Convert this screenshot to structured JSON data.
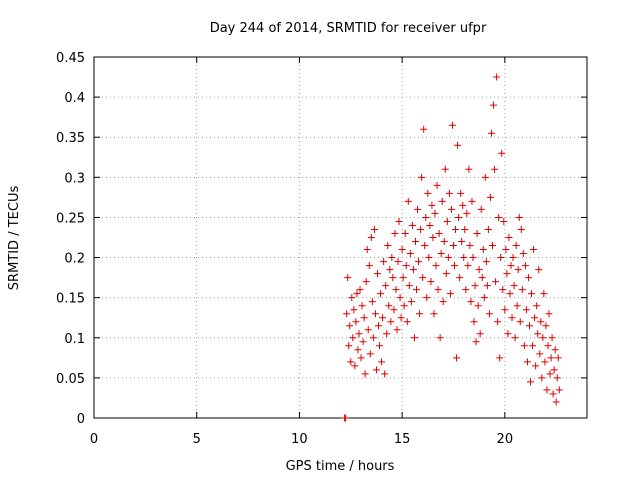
{
  "chart_data": {
    "type": "scatter",
    "title": "Day 244 of 2014, SRMTID for receiver ufpr",
    "xlabel": "GPS time / hours",
    "ylabel": "SRMTID / TECUs",
    "xlim": [
      0,
      24
    ],
    "ylim": [
      0,
      0.45
    ],
    "xticks": [
      0,
      5,
      10,
      15,
      20
    ],
    "xtick_labels": [
      "0",
      "5",
      "10",
      "15",
      "20"
    ],
    "yticks": [
      0,
      0.05,
      0.1,
      0.15,
      0.2,
      0.25,
      0.3,
      0.35,
      0.4,
      0.45
    ],
    "ytick_labels": [
      "0",
      "0.05",
      "0.1",
      "0.15",
      "0.2",
      "0.25",
      "0.3",
      "0.35",
      "0.4",
      "0.45"
    ],
    "grid": true,
    "marker": "+",
    "color": "#e00000",
    "series": [
      {
        "name": "SRMTID",
        "points": [
          [
            12.2,
            0.0
          ],
          [
            12.25,
            0.0
          ],
          [
            12.3,
            0.13
          ],
          [
            12.35,
            0.175
          ],
          [
            12.4,
            0.09
          ],
          [
            12.45,
            0.115
          ],
          [
            12.5,
            0.07
          ],
          [
            12.55,
            0.15
          ],
          [
            12.6,
            0.1
          ],
          [
            12.65,
            0.135
          ],
          [
            12.7,
            0.065
          ],
          [
            12.75,
            0.12
          ],
          [
            12.8,
            0.155
          ],
          [
            12.85,
            0.085
          ],
          [
            12.9,
            0.105
          ],
          [
            12.95,
            0.16
          ],
          [
            13.0,
            0.075
          ],
          [
            13.05,
            0.14
          ],
          [
            13.1,
            0.095
          ],
          [
            13.15,
            0.125
          ],
          [
            13.2,
            0.055
          ],
          [
            13.25,
            0.17
          ],
          [
            13.3,
            0.21
          ],
          [
            13.35,
            0.11
          ],
          [
            13.4,
            0.19
          ],
          [
            13.45,
            0.08
          ],
          [
            13.5,
            0.225
          ],
          [
            13.55,
            0.145
          ],
          [
            13.6,
            0.1
          ],
          [
            13.65,
            0.235
          ],
          [
            13.7,
            0.13
          ],
          [
            13.75,
            0.06
          ],
          [
            13.8,
            0.18
          ],
          [
            13.85,
            0.115
          ],
          [
            13.9,
            0.09
          ],
          [
            13.95,
            0.155
          ],
          [
            14.0,
            0.07
          ],
          [
            14.05,
            0.125
          ],
          [
            14.1,
            0.195
          ],
          [
            14.15,
            0.055
          ],
          [
            14.2,
            0.165
          ],
          [
            14.25,
            0.105
          ],
          [
            14.3,
            0.215
          ],
          [
            14.35,
            0.14
          ],
          [
            14.4,
            0.185
          ],
          [
            14.45,
            0.12
          ],
          [
            14.5,
            0.2
          ],
          [
            14.55,
            0.175
          ],
          [
            14.6,
            0.135
          ],
          [
            14.65,
            0.23
          ],
          [
            14.7,
            0.16
          ],
          [
            14.75,
            0.11
          ],
          [
            14.8,
            0.195
          ],
          [
            14.85,
            0.245
          ],
          [
            14.9,
            0.15
          ],
          [
            14.95,
            0.125
          ],
          [
            15.0,
            0.21
          ],
          [
            15.05,
            0.175
          ],
          [
            15.1,
            0.14
          ],
          [
            15.15,
            0.23
          ],
          [
            15.2,
            0.19
          ],
          [
            15.25,
            0.12
          ],
          [
            15.3,
            0.27
          ],
          [
            15.35,
            0.165
          ],
          [
            15.4,
            0.205
          ],
          [
            15.45,
            0.145
          ],
          [
            15.5,
            0.24
          ],
          [
            15.55,
            0.185
          ],
          [
            15.6,
            0.1
          ],
          [
            15.65,
            0.22
          ],
          [
            15.7,
            0.16
          ],
          [
            15.75,
            0.26
          ],
          [
            15.8,
            0.195
          ],
          [
            15.85,
            0.13
          ],
          [
            15.9,
            0.235
          ],
          [
            15.95,
            0.3
          ],
          [
            16.0,
            0.175
          ],
          [
            16.05,
            0.36
          ],
          [
            16.1,
            0.215
          ],
          [
            16.15,
            0.25
          ],
          [
            16.2,
            0.15
          ],
          [
            16.25,
            0.28
          ],
          [
            16.3,
            0.2
          ],
          [
            16.35,
            0.24
          ],
          [
            16.4,
            0.17
          ],
          [
            16.45,
            0.265
          ],
          [
            16.5,
            0.225
          ],
          [
            16.55,
            0.13
          ],
          [
            16.6,
            0.255
          ],
          [
            16.65,
            0.19
          ],
          [
            16.7,
            0.29
          ],
          [
            16.75,
            0.16
          ],
          [
            16.8,
            0.23
          ],
          [
            16.85,
            0.1
          ],
          [
            16.9,
            0.205
          ],
          [
            16.95,
            0.27
          ],
          [
            17.0,
            0.145
          ],
          [
            17.05,
            0.22
          ],
          [
            17.1,
            0.31
          ],
          [
            17.15,
            0.18
          ],
          [
            17.2,
            0.245
          ],
          [
            17.25,
            0.2
          ],
          [
            17.3,
            0.28
          ],
          [
            17.35,
            0.155
          ],
          [
            17.4,
            0.26
          ],
          [
            17.45,
            0.365
          ],
          [
            17.5,
            0.215
          ],
          [
            17.55,
            0.19
          ],
          [
            17.6,
            0.235
          ],
          [
            17.65,
            0.075
          ],
          [
            17.7,
            0.34
          ],
          [
            17.75,
            0.25
          ],
          [
            17.8,
            0.175
          ],
          [
            17.85,
            0.28
          ],
          [
            17.9,
            0.22
          ],
          [
            17.95,
            0.265
          ],
          [
            18.0,
            0.2
          ],
          [
            18.05,
            0.235
          ],
          [
            18.1,
            0.16
          ],
          [
            18.15,
            0.255
          ],
          [
            18.2,
            0.19
          ],
          [
            18.25,
            0.31
          ],
          [
            18.3,
            0.215
          ],
          [
            18.35,
            0.145
          ],
          [
            18.4,
            0.27
          ],
          [
            18.45,
            0.2
          ],
          [
            18.5,
            0.12
          ],
          [
            18.55,
            0.165
          ],
          [
            18.6,
            0.095
          ],
          [
            18.65,
            0.23
          ],
          [
            18.7,
            0.14
          ],
          [
            18.75,
            0.185
          ],
          [
            18.8,
            0.105
          ],
          [
            18.85,
            0.26
          ],
          [
            18.9,
            0.175
          ],
          [
            18.95,
            0.21
          ],
          [
            19.0,
            0.15
          ],
          [
            19.05,
            0.3
          ],
          [
            19.1,
            0.195
          ],
          [
            19.15,
            0.165
          ],
          [
            19.2,
            0.235
          ],
          [
            19.25,
            0.13
          ],
          [
            19.3,
            0.275
          ],
          [
            19.35,
            0.355
          ],
          [
            19.4,
            0.215
          ],
          [
            19.45,
            0.39
          ],
          [
            19.5,
            0.31
          ],
          [
            19.55,
            0.17
          ],
          [
            19.6,
            0.425
          ],
          [
            19.65,
            0.12
          ],
          [
            19.7,
            0.25
          ],
          [
            19.75,
            0.075
          ],
          [
            19.8,
            0.2
          ],
          [
            19.85,
            0.33
          ],
          [
            19.9,
            0.16
          ],
          [
            19.95,
            0.245
          ],
          [
            20.0,
            0.135
          ],
          [
            20.05,
            0.21
          ],
          [
            20.1,
            0.18
          ],
          [
            20.15,
            0.105
          ],
          [
            20.2,
            0.225
          ],
          [
            20.25,
            0.155
          ],
          [
            20.3,
            0.19
          ],
          [
            20.35,
            0.125
          ],
          [
            20.4,
            0.2
          ],
          [
            20.45,
            0.165
          ],
          [
            20.5,
            0.1
          ],
          [
            20.55,
            0.215
          ],
          [
            20.6,
            0.14
          ],
          [
            20.65,
            0.185
          ],
          [
            20.7,
            0.25
          ],
          [
            20.75,
            0.12
          ],
          [
            20.8,
            0.235
          ],
          [
            20.85,
            0.16
          ],
          [
            20.9,
            0.205
          ],
          [
            20.95,
            0.09
          ],
          [
            21.0,
            0.19
          ],
          [
            21.05,
            0.135
          ],
          [
            21.1,
            0.07
          ],
          [
            21.15,
            0.175
          ],
          [
            21.2,
            0.115
          ],
          [
            21.25,
            0.045
          ],
          [
            21.3,
            0.155
          ],
          [
            21.35,
            0.09
          ],
          [
            21.4,
            0.21
          ],
          [
            21.45,
            0.125
          ],
          [
            21.5,
            0.065
          ],
          [
            21.55,
            0.14
          ],
          [
            21.6,
            0.105
          ],
          [
            21.65,
            0.185
          ],
          [
            21.7,
            0.08
          ],
          [
            21.75,
            0.12
          ],
          [
            21.8,
            0.05
          ],
          [
            21.85,
            0.1
          ],
          [
            21.9,
            0.155
          ],
          [
            21.95,
            0.07
          ],
          [
            22.0,
            0.115
          ],
          [
            22.05,
            0.035
          ],
          [
            22.1,
            0.09
          ],
          [
            22.15,
            0.13
          ],
          [
            22.2,
            0.055
          ],
          [
            22.25,
            0.075
          ],
          [
            22.3,
            0.1
          ],
          [
            22.35,
            0.03
          ],
          [
            22.4,
            0.06
          ],
          [
            22.45,
            0.085
          ],
          [
            22.5,
            0.02
          ],
          [
            22.55,
            0.05
          ],
          [
            22.6,
            0.075
          ],
          [
            22.65,
            0.035
          ]
        ]
      }
    ]
  }
}
